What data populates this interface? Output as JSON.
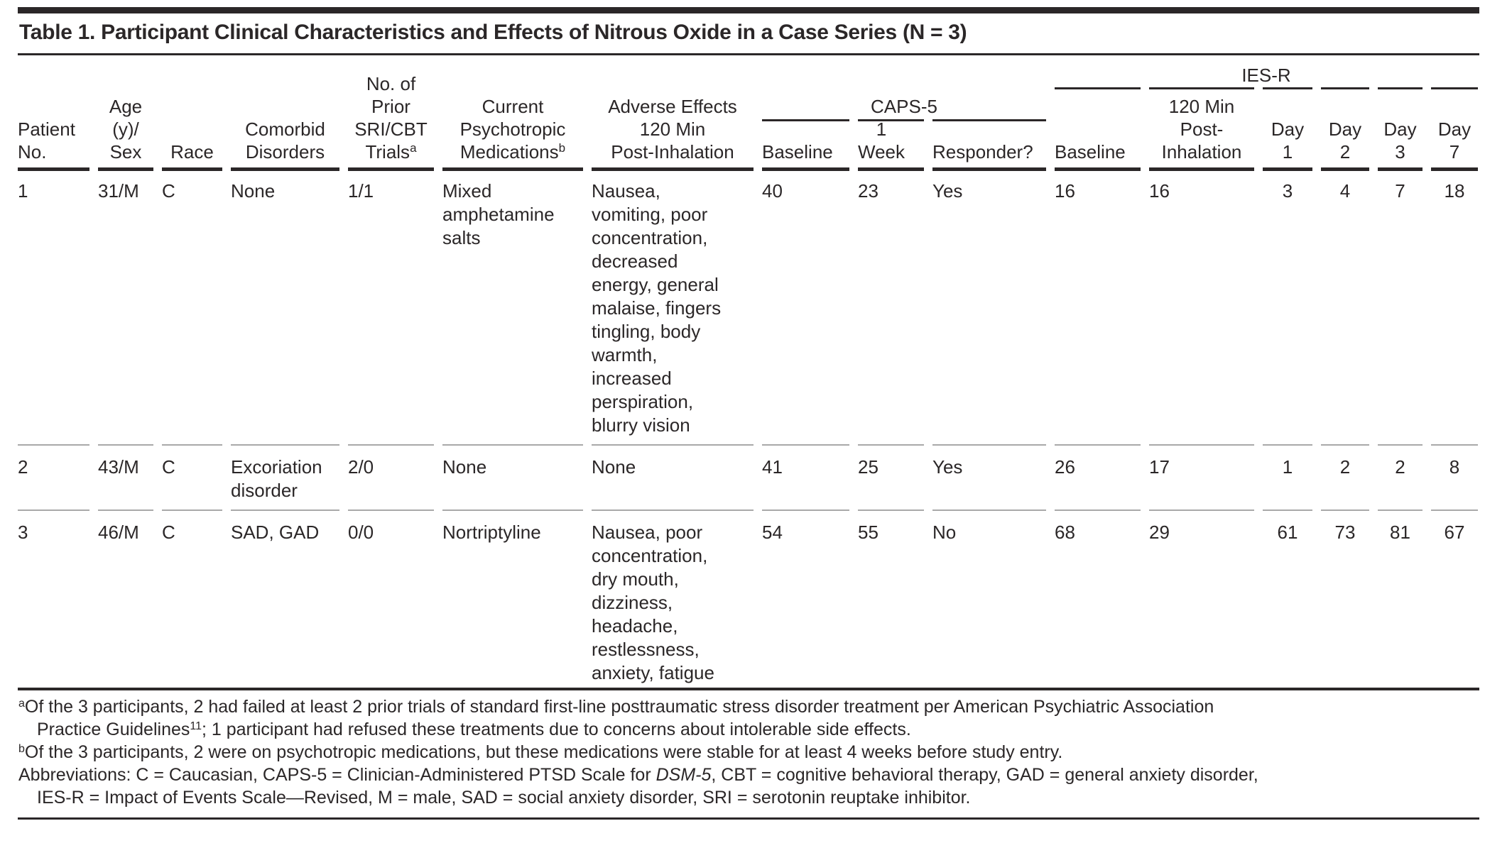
{
  "colors": {
    "text": "#2b2728",
    "rule": "#2b2728",
    "row_separator": "#a9a9a9",
    "background": "#ffffff"
  },
  "table": {
    "title": "Table 1. Participant Clinical Characteristics and Effects of Nitrous Oxide in a Case Series (N = 3)",
    "groups": {
      "caps5": "CAPS-5",
      "iesr": "IES-R"
    },
    "columns": {
      "patient": {
        "lines": [
          "Patient",
          "No."
        ]
      },
      "age_sex": {
        "lines": [
          "Age",
          "(y)/",
          "Sex"
        ]
      },
      "race": {
        "lines": [
          "Race"
        ]
      },
      "comorbid": {
        "lines": [
          "Comorbid",
          "Disorders"
        ]
      },
      "trials": {
        "lines": [
          "No. of",
          "Prior",
          "SRI/CBT",
          "Trials"
        ],
        "sup": "a"
      },
      "meds": {
        "lines": [
          "Current",
          "Psychotropic",
          "Medications"
        ],
        "sup": "b"
      },
      "adverse": {
        "lines": [
          "Adverse Effects",
          "120 Min",
          "Post-Inhalation"
        ]
      },
      "caps_baseline": {
        "lines": [
          "Baseline"
        ]
      },
      "caps_week": {
        "lines": [
          "1",
          "Week"
        ]
      },
      "responder": {
        "lines": [
          "Responder?"
        ]
      },
      "ies_baseline": {
        "lines": [
          "Baseline"
        ]
      },
      "ies_120": {
        "lines": [
          "120 Min",
          "Post-",
          "Inhalation"
        ]
      },
      "day1": {
        "lines": [
          "Day",
          "1"
        ]
      },
      "day2": {
        "lines": [
          "Day",
          "2"
        ]
      },
      "day3": {
        "lines": [
          "Day",
          "3"
        ]
      },
      "day7": {
        "lines": [
          "Day",
          "7"
        ]
      }
    },
    "rows": [
      {
        "patient": "1",
        "age_sex": "31/M",
        "race": "C",
        "comorbid": "None",
        "trials": "1/1",
        "meds": "Mixed amphetamine salts",
        "adverse": "Nausea,\nvomiting, poor\nconcentration,\ndecreased\nenergy, general\nmalaise, fingers\ntingling, body\nwarmth,\nincreased\nperspiration,\nblurry vision",
        "caps_baseline": "40",
        "caps_week": "23",
        "responder": "Yes",
        "ies_baseline": "16",
        "ies_120": "16",
        "day1": "3",
        "day2": "4",
        "day3": "7",
        "day7": "18"
      },
      {
        "patient": "2",
        "age_sex": "43/M",
        "race": "C",
        "comorbid": "Excoriation disorder",
        "trials": "2/0",
        "meds": "None",
        "adverse": "None",
        "caps_baseline": "41",
        "caps_week": "25",
        "responder": "Yes",
        "ies_baseline": "26",
        "ies_120": "17",
        "day1": "1",
        "day2": "2",
        "day3": "2",
        "day7": "8"
      },
      {
        "patient": "3",
        "age_sex": "46/M",
        "race": "C",
        "comorbid": "SAD, GAD",
        "trials": "0/0",
        "meds": "Nortriptyline",
        "adverse": "Nausea, poor\nconcentration,\ndry mouth,\ndizziness,\nheadache,\nrestlessness,\nanxiety, fatigue",
        "caps_baseline": "54",
        "caps_week": "55",
        "responder": "No",
        "ies_baseline": "68",
        "ies_120": "29",
        "day1": "61",
        "day2": "73",
        "day3": "81",
        "day7": "67"
      }
    ]
  },
  "footnotes": {
    "a": {
      "marker": "a",
      "text_start": "Of the 3 participants, 2 had failed at least 2 prior trials of standard first-line posttraumatic stress disorder treatment per American Psychiatric Association\nPractice Guidelines",
      "ref": "11",
      "text_end": "; 1 participant had refused these treatments due to concerns about intolerable side effects."
    },
    "b": {
      "marker": "b",
      "text": "Of the 3 participants, 2 were on psychotropic medications, but these medications were stable for at least 4 weeks before study entry."
    }
  },
  "abbreviations": {
    "text_start": "Abbreviations: C = Caucasian, CAPS-5 = Clinician-Administered PTSD Scale for ",
    "italic_term": "DSM-5",
    "text_end": ", CBT = cognitive behavioral therapy, GAD = general anxiety disorder,\nIES-R = Impact of Events Scale—Revised, M = male, SAD = social anxiety disorder, SRI = serotonin reuptake inhibitor."
  }
}
